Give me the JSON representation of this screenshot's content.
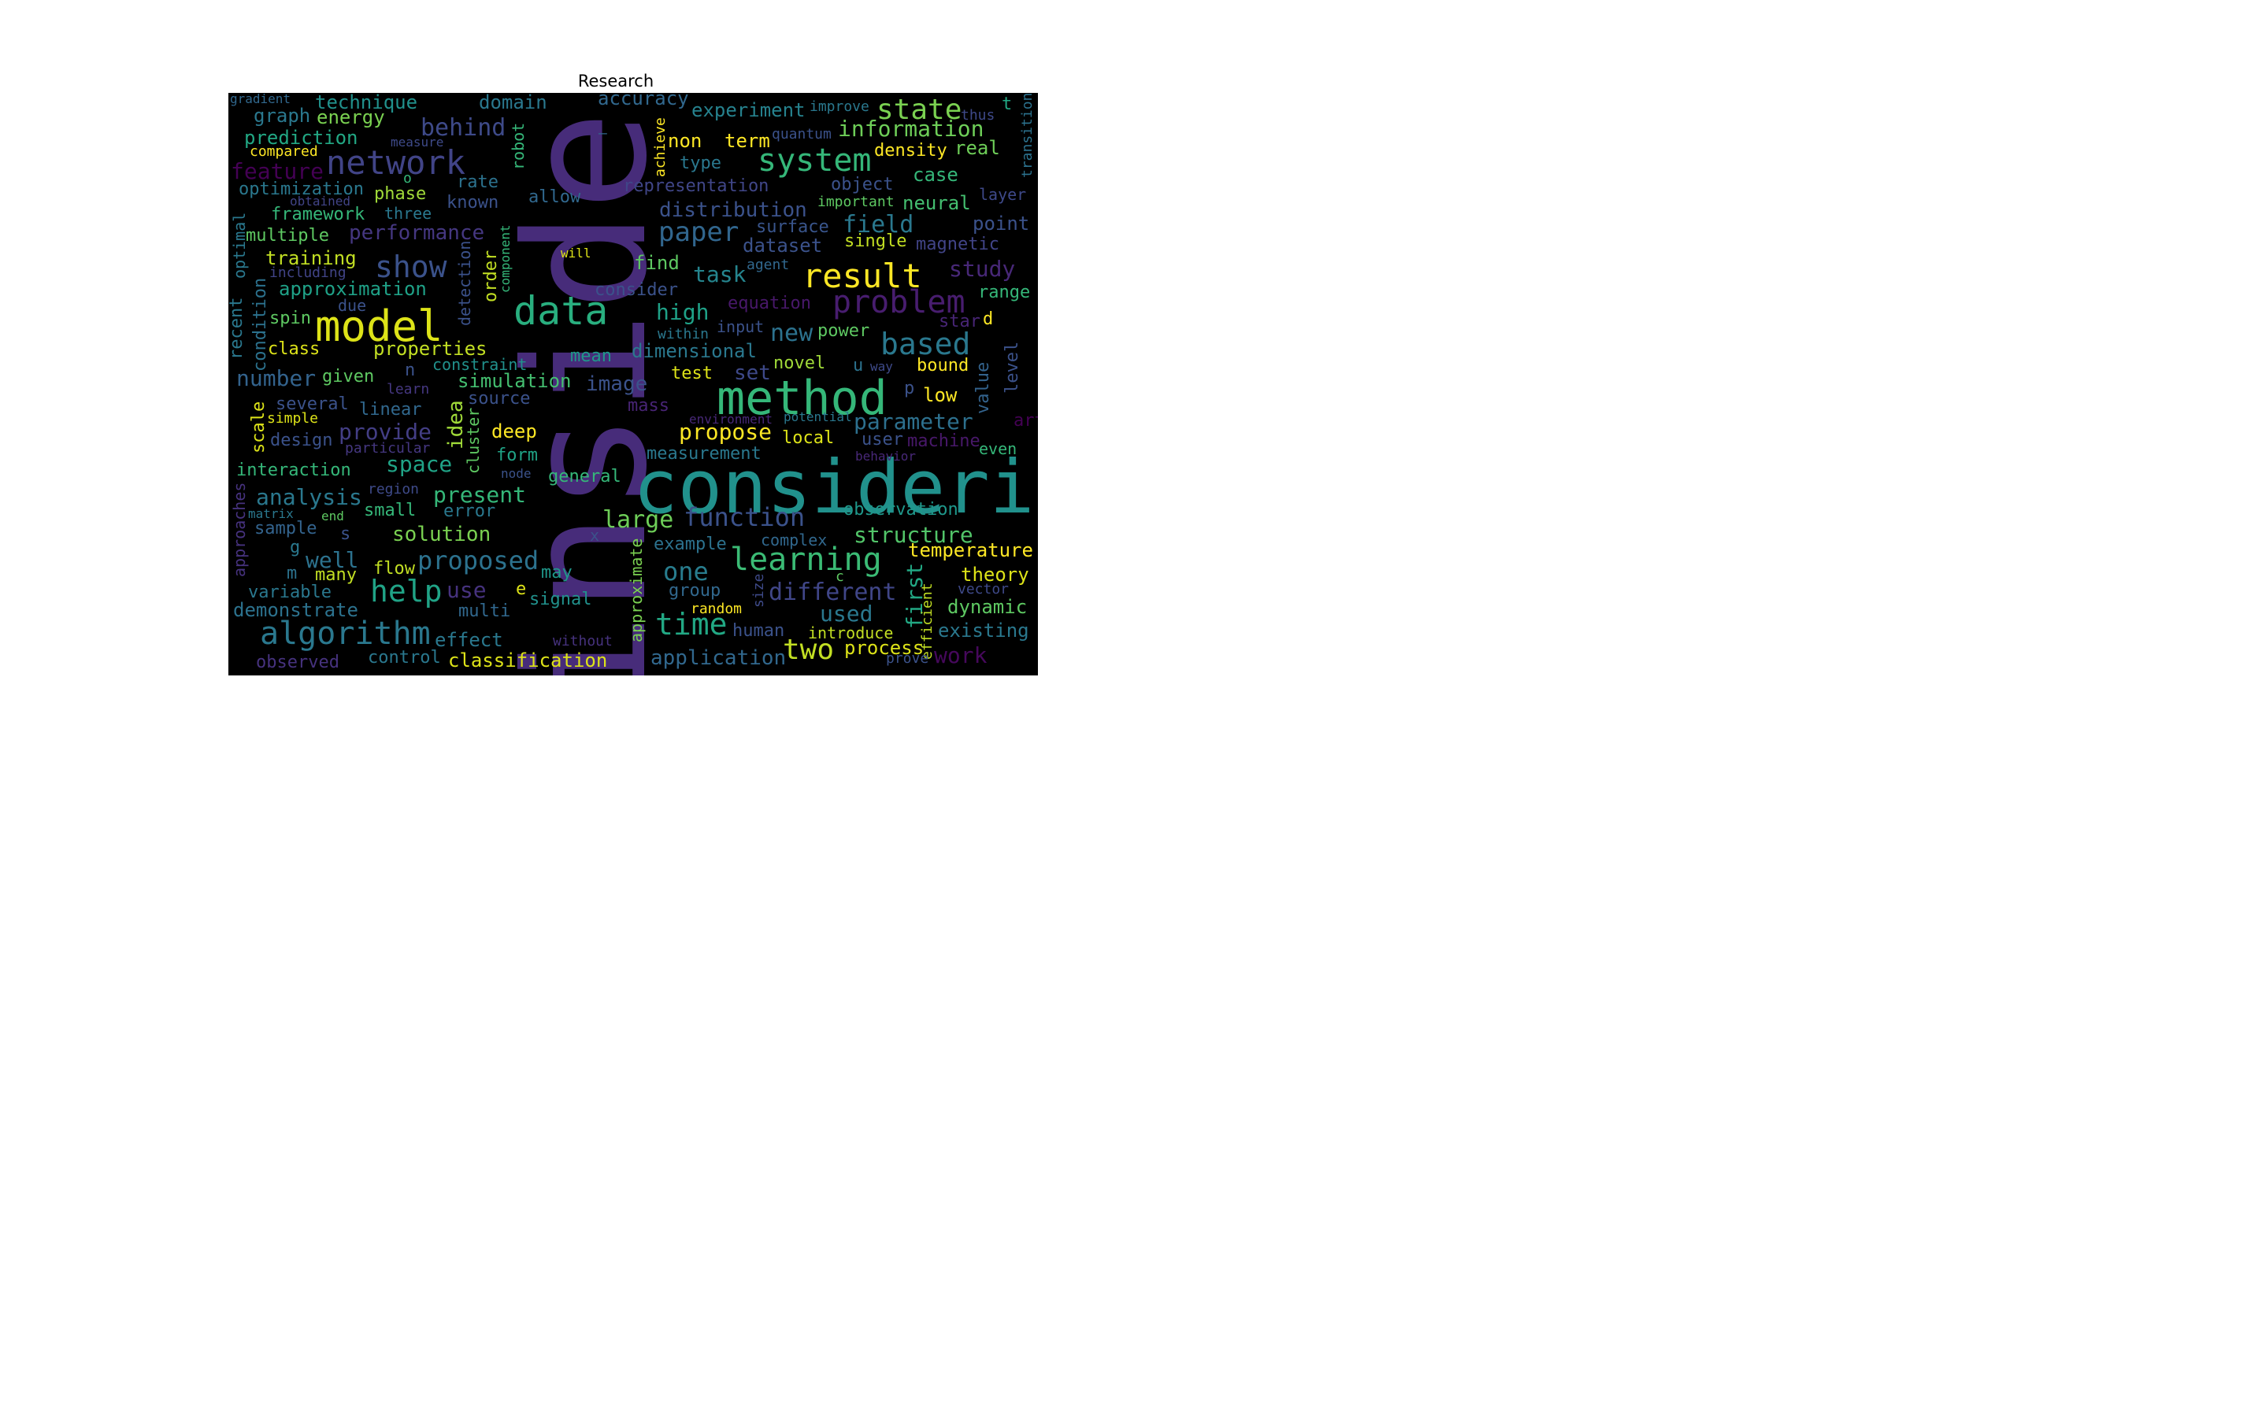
{
  "figure": {
    "title": "Research",
    "background_color": "#000000",
    "colormap": "viridis"
  },
  "words": [
    {
      "text": "inside",
      "color": "#472c7a",
      "vertical": true
    },
    {
      "text": "considering",
      "color": "#21918c",
      "vertical": false
    },
    {
      "text": "method",
      "color": "#35b779",
      "vertical": false
    },
    {
      "text": "model",
      "color": "#dde318",
      "vertical": false
    },
    {
      "text": "data",
      "color": "#29af7f",
      "vertical": false
    },
    {
      "text": "problem",
      "color": "#481d6f",
      "vertical": false
    },
    {
      "text": "result",
      "color": "#fde725",
      "vertical": false
    },
    {
      "text": "network",
      "color": "#414487",
      "vertical": false
    },
    {
      "text": "algorithm",
      "color": "#2a788e",
      "vertical": false
    },
    {
      "text": "learning",
      "color": "#3bbb75",
      "vertical": false
    },
    {
      "text": "system",
      "color": "#35b779",
      "vertical": false
    },
    {
      "text": "state",
      "color": "#7ad151",
      "vertical": false
    },
    {
      "text": "based",
      "color": "#2a788e",
      "vertical": false
    },
    {
      "text": "show",
      "color": "#3b528b",
      "vertical": false
    },
    {
      "text": "help",
      "color": "#20a386",
      "vertical": false
    },
    {
      "text": "time",
      "color": "#22a884",
      "vertical": false
    },
    {
      "text": "paper",
      "color": "#31668e",
      "vertical": false
    },
    {
      "text": "function",
      "color": "#3b528b",
      "vertical": false
    },
    {
      "text": "proposed",
      "color": "#2c728e",
      "vertical": false
    },
    {
      "text": "different",
      "color": "#404688",
      "vertical": false
    },
    {
      "text": "structure",
      "color": "#52c569",
      "vertical": false
    },
    {
      "text": "two",
      "color": "#c2df23",
      "vertical": false
    },
    {
      "text": "one",
      "color": "#287d8e",
      "vertical": false
    },
    {
      "text": "information",
      "color": "#6ece58",
      "vertical": false
    },
    {
      "text": "behind",
      "color": "#3e4a89",
      "vertical": false
    },
    {
      "text": "performance",
      "color": "#453781",
      "vertical": false
    },
    {
      "text": "propose",
      "color": "#fde725",
      "vertical": false
    },
    {
      "text": "parameter",
      "color": "#2d708e",
      "vertical": false
    },
    {
      "text": "distribution",
      "color": "#3b528b",
      "vertical": false
    },
    {
      "text": "present",
      "color": "#35b779",
      "vertical": false
    },
    {
      "text": "large",
      "color": "#6ece58",
      "vertical": false
    },
    {
      "text": "new",
      "color": "#2c728e",
      "vertical": false
    },
    {
      "text": "field",
      "color": "#2a788e",
      "vertical": false
    },
    {
      "text": "study",
      "color": "#482878",
      "vertical": false
    },
    {
      "text": "task",
      "color": "#25858e",
      "vertical": false
    },
    {
      "text": "high",
      "color": "#1fa187",
      "vertical": false
    },
    {
      "text": "analysis",
      "color": "#2a788e",
      "vertical": false
    },
    {
      "text": "provide",
      "color": "#433e85",
      "vertical": false
    },
    {
      "text": "space",
      "color": "#20a386",
      "vertical": false
    },
    {
      "text": "used",
      "color": "#2a788e",
      "vertical": false
    },
    {
      "text": "feature",
      "color": "#440154",
      "vertical": false
    },
    {
      "text": "number",
      "color": "#33638d",
      "vertical": false
    },
    {
      "text": "idea",
      "color": "#a0da39",
      "vertical": true
    },
    {
      "text": "well",
      "color": "#2c728e",
      "vertical": false
    },
    {
      "text": "use",
      "color": "#46327e",
      "vertical": false
    },
    {
      "text": "image",
      "color": "#3b528b",
      "vertical": false
    },
    {
      "text": "dimensional",
      "color": "#2a788e",
      "vertical": false
    },
    {
      "text": "first",
      "color": "#22a884",
      "vertical": true
    },
    {
      "text": "work",
      "color": "#46085c",
      "vertical": false
    },
    {
      "text": "application",
      "color": "#31688e",
      "vertical": false
    },
    {
      "text": "process",
      "color": "#dde318",
      "vertical": false
    },
    {
      "text": "solution",
      "color": "#7ad151",
      "vertical": false
    },
    {
      "text": "dynamic",
      "color": "#5ec962",
      "vertical": false
    },
    {
      "text": "existing",
      "color": "#2a788e",
      "vertical": false
    },
    {
      "text": "demonstrate",
      "color": "#2c728e",
      "vertical": false
    },
    {
      "text": "set",
      "color": "#3e4989",
      "vertical": false
    },
    {
      "text": "deep",
      "color": "#fde725",
      "vertical": false
    },
    {
      "text": "theory",
      "color": "#dde318",
      "vertical": false
    },
    {
      "text": "temperature",
      "color": "#fde725",
      "vertical": false
    },
    {
      "text": "observation",
      "color": "#1f988b",
      "vertical": false
    },
    {
      "text": "simulation",
      "color": "#44bf70",
      "vertical": false
    },
    {
      "text": "properties",
      "color": "#c2df23",
      "vertical": false
    },
    {
      "text": "training",
      "color": "#c2df23",
      "vertical": false
    },
    {
      "text": "approximation",
      "color": "#1fa187",
      "vertical": false
    },
    {
      "text": "prediction",
      "color": "#22a884",
      "vertical": false
    },
    {
      "text": "technique",
      "color": "#21918c",
      "vertical": false
    },
    {
      "text": "experiment",
      "color": "#26828e",
      "vertical": false
    },
    {
      "text": "energy",
      "color": "#7ad151",
      "vertical": false
    },
    {
      "text": "graph",
      "color": "#2a788e",
      "vertical": false
    },
    {
      "text": "domain",
      "color": "#2a788e",
      "vertical": false
    },
    {
      "text": "accuracy",
      "color": "#31688e",
      "vertical": false
    },
    {
      "text": "non",
      "color": "#fde725",
      "vertical": false
    },
    {
      "text": "term",
      "color": "#fde725",
      "vertical": false
    },
    {
      "text": "density",
      "color": "#fde725",
      "vertical": false
    },
    {
      "text": "real",
      "color": "#6ece58",
      "vertical": false
    },
    {
      "text": "case",
      "color": "#35b779",
      "vertical": false
    },
    {
      "text": "neural",
      "color": "#44bf70",
      "vertical": false
    },
    {
      "text": "point",
      "color": "#3b528b",
      "vertical": false
    },
    {
      "text": "magnetic",
      "color": "#414487",
      "vertical": false
    },
    {
      "text": "single",
      "color": "#c2df23",
      "vertical": false
    },
    {
      "text": "surface",
      "color": "#39558c",
      "vertical": false
    },
    {
      "text": "dataset",
      "color": "#3b528b",
      "vertical": false
    },
    {
      "text": "find",
      "color": "#5ec962",
      "vertical": false
    },
    {
      "text": "consider",
      "color": "#3b528b",
      "vertical": false
    },
    {
      "text": "equation",
      "color": "#48186a",
      "vertical": false
    },
    {
      "text": "range",
      "color": "#35b779",
      "vertical": false
    },
    {
      "text": "star",
      "color": "#482576",
      "vertical": false
    },
    {
      "text": "d",
      "color": "#fde725",
      "vertical": false
    },
    {
      "text": "power",
      "color": "#5ec962",
      "vertical": false
    },
    {
      "text": "bound",
      "color": "#fde725",
      "vertical": false
    },
    {
      "text": "low",
      "color": "#fde725",
      "vertical": false
    },
    {
      "text": "value",
      "color": "#33638d",
      "vertical": true
    },
    {
      "text": "level",
      "color": "#3b528b",
      "vertical": true
    },
    {
      "text": "art",
      "color": "#440154",
      "vertical": false
    },
    {
      "text": "user",
      "color": "#3b528b",
      "vertical": false
    },
    {
      "text": "machine",
      "color": "#48186a",
      "vertical": false
    },
    {
      "text": "even",
      "color": "#35b779",
      "vertical": false
    },
    {
      "text": "local",
      "color": "#dde318",
      "vertical": false
    },
    {
      "text": "novel",
      "color": "#a0da39",
      "vertical": false
    },
    {
      "text": "u",
      "color": "#2c728e",
      "vertical": false
    },
    {
      "text": "test",
      "color": "#dde318",
      "vertical": false
    },
    {
      "text": "mean",
      "color": "#1f988b",
      "vertical": false
    },
    {
      "text": "mass",
      "color": "#482475",
      "vertical": false
    },
    {
      "text": "measurement",
      "color": "#2a788e",
      "vertical": false
    },
    {
      "text": "general",
      "color": "#35b779",
      "vertical": false
    },
    {
      "text": "form",
      "color": "#20a386",
      "vertical": false
    },
    {
      "text": "flow",
      "color": "#c2df23",
      "vertical": false
    },
    {
      "text": "may",
      "color": "#1f988b",
      "vertical": false
    },
    {
      "text": "signal",
      "color": "#21918c",
      "vertical": false
    },
    {
      "text": "effect",
      "color": "#2a788e",
      "vertical": false
    },
    {
      "text": "multi",
      "color": "#31688e",
      "vertical": false
    },
    {
      "text": "classification",
      "color": "#dde318",
      "vertical": false
    },
    {
      "text": "control",
      "color": "#2a788e",
      "vertical": false
    },
    {
      "text": "without",
      "color": "#46327e",
      "vertical": false
    },
    {
      "text": "example",
      "color": "#2c728e",
      "vertical": false
    },
    {
      "text": "group",
      "color": "#31688e",
      "vertical": false
    },
    {
      "text": "human",
      "color": "#3b528b",
      "vertical": false
    },
    {
      "text": "introduce",
      "color": "#c2df23",
      "vertical": false
    },
    {
      "text": "random",
      "color": "#fde725",
      "vertical": false
    },
    {
      "text": "complex",
      "color": "#31688e",
      "vertical": false
    },
    {
      "text": "approximate",
      "color": "#7ad151",
      "vertical": true
    },
    {
      "text": "size",
      "color": "#3e4a89",
      "vertical": true
    },
    {
      "text": "efficient",
      "color": "#c2df23",
      "vertical": true
    },
    {
      "text": "vector",
      "color": "#3e4989",
      "vertical": false
    },
    {
      "text": "prove",
      "color": "#3b528b",
      "vertical": false
    },
    {
      "text": "interaction",
      "color": "#35b779",
      "vertical": false
    },
    {
      "text": "design",
      "color": "#3b528b",
      "vertical": false
    },
    {
      "text": "simple",
      "color": "#dde318",
      "vertical": false
    },
    {
      "text": "several",
      "color": "#3b528b",
      "vertical": false
    },
    {
      "text": "scale",
      "color": "#dde318",
      "vertical": true
    },
    {
      "text": "linear",
      "color": "#31688e",
      "vertical": false
    },
    {
      "text": "given",
      "color": "#5ec962",
      "vertical": false
    },
    {
      "text": "n",
      "color": "#3b528b",
      "vertical": false
    },
    {
      "text": "learn",
      "color": "#453781",
      "vertical": false
    },
    {
      "text": "source",
      "color": "#3b528b",
      "vertical": false
    },
    {
      "text": "constraint",
      "color": "#21918c",
      "vertical": false
    },
    {
      "text": "class",
      "color": "#dde318",
      "vertical": false
    },
    {
      "text": "spin",
      "color": "#5ec962",
      "vertical": false
    },
    {
      "text": "due",
      "color": "#3b528b",
      "vertical": false
    },
    {
      "text": "condition",
      "color": "#2c728e",
      "vertical": true
    },
    {
      "text": "recent",
      "color": "#2a788e",
      "vertical": true
    },
    {
      "text": "optimal",
      "color": "#2a788e",
      "vertical": true
    },
    {
      "text": "including",
      "color": "#414487",
      "vertical": false
    },
    {
      "text": "multiple",
      "color": "#5ec962",
      "vertical": false
    },
    {
      "text": "framework",
      "color": "#35b779",
      "vertical": false
    },
    {
      "text": "three",
      "color": "#2a788e",
      "vertical": false
    },
    {
      "text": "obtained",
      "color": "#414487",
      "vertical": false
    },
    {
      "text": "optimization",
      "color": "#2a788e",
      "vertical": false
    },
    {
      "text": "phase",
      "color": "#a0da39",
      "vertical": false
    },
    {
      "text": "rate",
      "color": "#2c728e",
      "vertical": false
    },
    {
      "text": "known",
      "color": "#3b528b",
      "vertical": false
    },
    {
      "text": "allow",
      "color": "#31688e",
      "vertical": false
    },
    {
      "text": "compared",
      "color": "#fde725",
      "vertical": false
    },
    {
      "text": "measure",
      "color": "#3e4a89",
      "vertical": false
    },
    {
      "text": "o",
      "color": "#35b779",
      "vertical": false
    },
    {
      "text": "gradient",
      "color": "#31688e",
      "vertical": false
    },
    {
      "text": "robot",
      "color": "#35b779",
      "vertical": true
    },
    {
      "text": "achieve",
      "color": "#fde725",
      "vertical": true
    },
    {
      "text": "–",
      "color": "#31688e",
      "vertical": false
    },
    {
      "text": "quantum",
      "color": "#3b528b",
      "vertical": false
    },
    {
      "text": "improve",
      "color": "#2a788e",
      "vertical": false
    },
    {
      "text": "thus",
      "color": "#3e4989",
      "vertical": false
    },
    {
      "text": "t",
      "color": "#22a884",
      "vertical": false
    },
    {
      "text": "transition",
      "color": "#2c728e",
      "vertical": true
    },
    {
      "text": "layer",
      "color": "#3e4989",
      "vertical": false
    },
    {
      "text": "representation",
      "color": "#404688",
      "vertical": false
    },
    {
      "text": "object",
      "color": "#3b528b",
      "vertical": false
    },
    {
      "text": "type",
      "color": "#2a788e",
      "vertical": false
    },
    {
      "text": "important",
      "color": "#5ec962",
      "vertical": false
    },
    {
      "text": "agent",
      "color": "#31688e",
      "vertical": false
    },
    {
      "text": "will",
      "color": "#dde318",
      "vertical": false
    },
    {
      "text": "order",
      "color": "#c2df23",
      "vertical": true
    },
    {
      "text": "component",
      "color": "#35b779",
      "vertical": true
    },
    {
      "text": "detection",
      "color": "#3b528b",
      "vertical": true
    },
    {
      "text": "input",
      "color": "#3b528b",
      "vertical": false
    },
    {
      "text": "within",
      "color": "#2a788e",
      "vertical": false
    },
    {
      "text": "way",
      "color": "#3e4a89",
      "vertical": false
    },
    {
      "text": "p",
      "color": "#3b528b",
      "vertical": false
    },
    {
      "text": "environment",
      "color": "#482878",
      "vertical": false
    },
    {
      "text": "potential",
      "color": "#2a788e",
      "vertical": false
    },
    {
      "text": "behavior",
      "color": "#482878",
      "vertical": false
    },
    {
      "text": "cluster",
      "color": "#5ec962",
      "vertical": true
    },
    {
      "text": "particular",
      "color": "#453781",
      "vertical": false
    },
    {
      "text": "node",
      "color": "#3b528b",
      "vertical": false
    },
    {
      "text": "region",
      "color": "#3e4a89",
      "vertical": false
    },
    {
      "text": "small",
      "color": "#35b779",
      "vertical": false
    },
    {
      "text": "error",
      "color": "#2a788e",
      "vertical": false
    },
    {
      "text": "matrix",
      "color": "#2a788e",
      "vertical": false
    },
    {
      "text": "end",
      "color": "#5ec962",
      "vertical": false
    },
    {
      "text": "sample",
      "color": "#33638d",
      "vertical": false
    },
    {
      "text": "s",
      "color": "#3b528b",
      "vertical": false
    },
    {
      "text": "x",
      "color": "#3b528b",
      "vertical": false
    },
    {
      "text": "approaches",
      "color": "#46327e",
      "vertical": true
    },
    {
      "text": "g",
      "color": "#2a788e",
      "vertical": false
    },
    {
      "text": "m",
      "color": "#2c728e",
      "vertical": false
    },
    {
      "text": "many",
      "color": "#c2df23",
      "vertical": false
    },
    {
      "text": "variable",
      "color": "#2a788e",
      "vertical": false
    },
    {
      "text": "e",
      "color": "#dde318",
      "vertical": false
    },
    {
      "text": "c",
      "color": "#5ec962",
      "vertical": false
    },
    {
      "text": "observed",
      "color": "#46327e",
      "vertical": false
    }
  ]
}
